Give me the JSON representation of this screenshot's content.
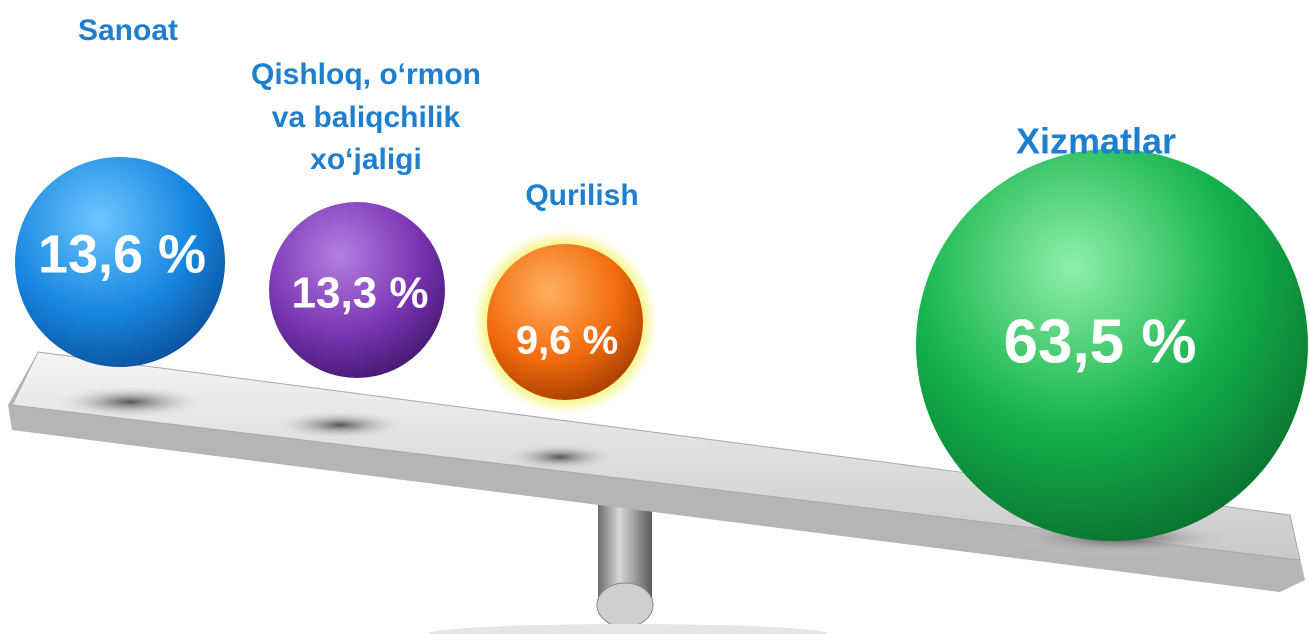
{
  "items": [
    {
      "label_lines": [
        "Sanoat"
      ],
      "value": "13,6 %"
    },
    {
      "label_lines": [
        "Qishloq, o‘rmon",
        "va baliqchilik",
        "xo‘jaligi"
      ],
      "value": "13,3 %"
    },
    {
      "label_lines": [
        "Qurilish"
      ],
      "value": "9,6 %"
    },
    {
      "label_lines": [
        "Xizmatlar"
      ],
      "value": "63,5 %"
    }
  ]
}
